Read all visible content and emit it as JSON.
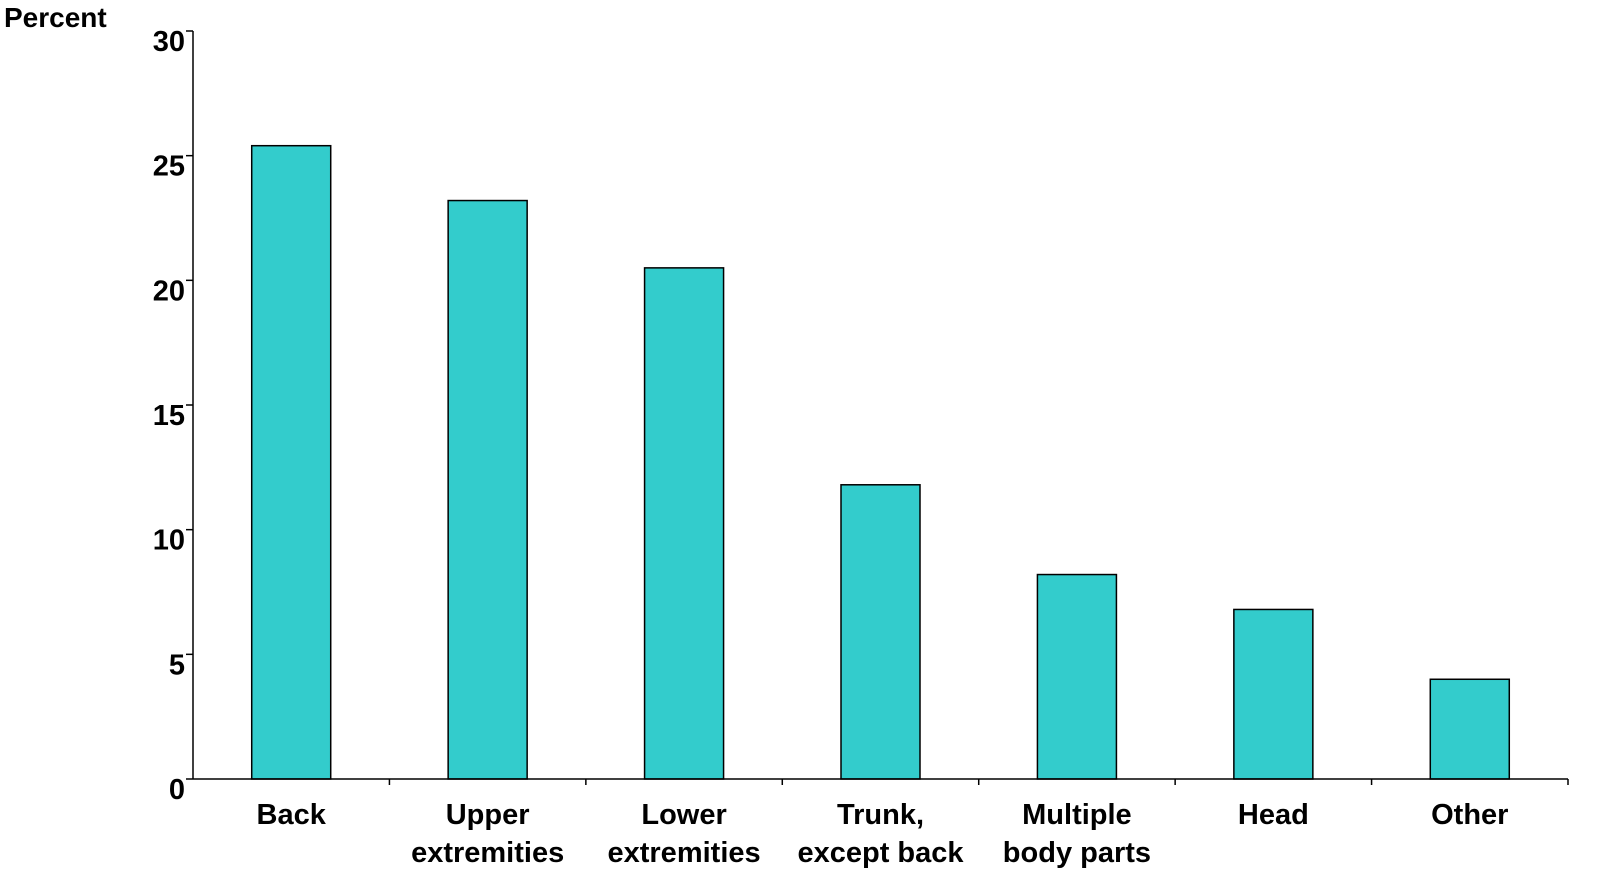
{
  "chart_data": {
    "type": "bar",
    "title": "",
    "xlabel": "",
    "ylabel": "Percent",
    "ylim": [
      0,
      30
    ],
    "yticks": [
      0,
      5,
      10,
      15,
      20,
      25,
      30
    ],
    "grid": false,
    "bar_color": "#33CCCC",
    "categories": [
      [
        "Back"
      ],
      [
        "Upper",
        "extremities"
      ],
      [
        "Lower",
        "extremities"
      ],
      [
        "Trunk,",
        "except back"
      ],
      [
        "Multiple",
        "body parts"
      ],
      [
        "Head"
      ],
      [
        "Other"
      ]
    ],
    "values": [
      25.4,
      23.2,
      20.5,
      11.8,
      8.2,
      6.8,
      4.0
    ]
  }
}
